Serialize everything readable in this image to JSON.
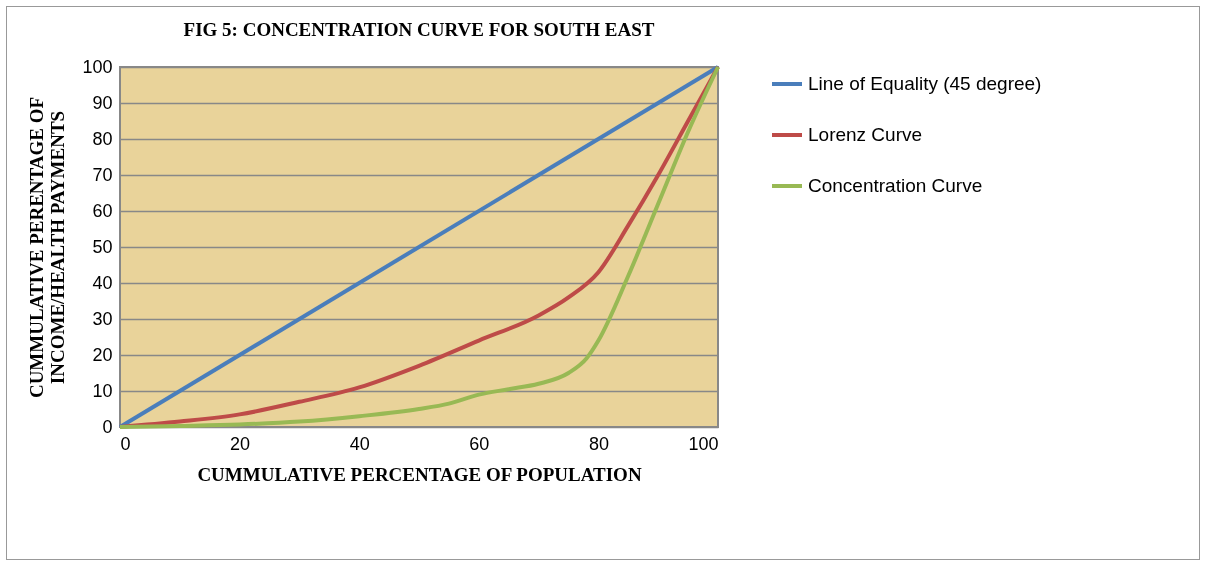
{
  "chart_data": {
    "type": "line",
    "title": "FIG 5: CONCENTRATION CURVE FOR SOUTH EAST",
    "xlabel": "CUMMULATIVE PERCENTAGE OF POPULATION",
    "ylabel": "CUMMULATIVE PERENTAGE OF\nINCOME/HEALTH PAYMENTS",
    "series": [
      {
        "name": "Line of Equality (45 degree)",
        "color": "#4a7ebb",
        "x": [
          0,
          100
        ],
        "values": [
          0,
          100
        ]
      },
      {
        "name": "Lorenz Curve",
        "color": "#be4b48",
        "x": [
          0,
          10,
          20,
          30,
          40,
          50,
          60,
          70,
          75,
          80,
          85,
          90,
          95,
          100
        ],
        "values": [
          0,
          1.5,
          3.5,
          7,
          11,
          17,
          24,
          31,
          36,
          43,
          56,
          70,
          85,
          100
        ]
      },
      {
        "name": "Concentration Curve",
        "color": "#98b954",
        "x": [
          0,
          10,
          20,
          30,
          40,
          50,
          55,
          60,
          65,
          70,
          75,
          78,
          80,
          85,
          90,
          95,
          100
        ],
        "values": [
          0,
          0.3,
          0.7,
          1.5,
          3,
          5,
          6.5,
          9,
          10.5,
          12,
          15,
          19,
          24,
          42,
          62,
          82,
          100
        ]
      }
    ],
    "xlim": [
      0,
      100
    ],
    "xticks": [
      0,
      20,
      40,
      60,
      80,
      100
    ],
    "ylim": [
      0,
      100
    ],
    "yticks": [
      0,
      10,
      20,
      30,
      40,
      50,
      60,
      70,
      80,
      90,
      100
    ],
    "grid": "y",
    "legend": "right",
    "marker": "none",
    "line_style": "solid"
  }
}
